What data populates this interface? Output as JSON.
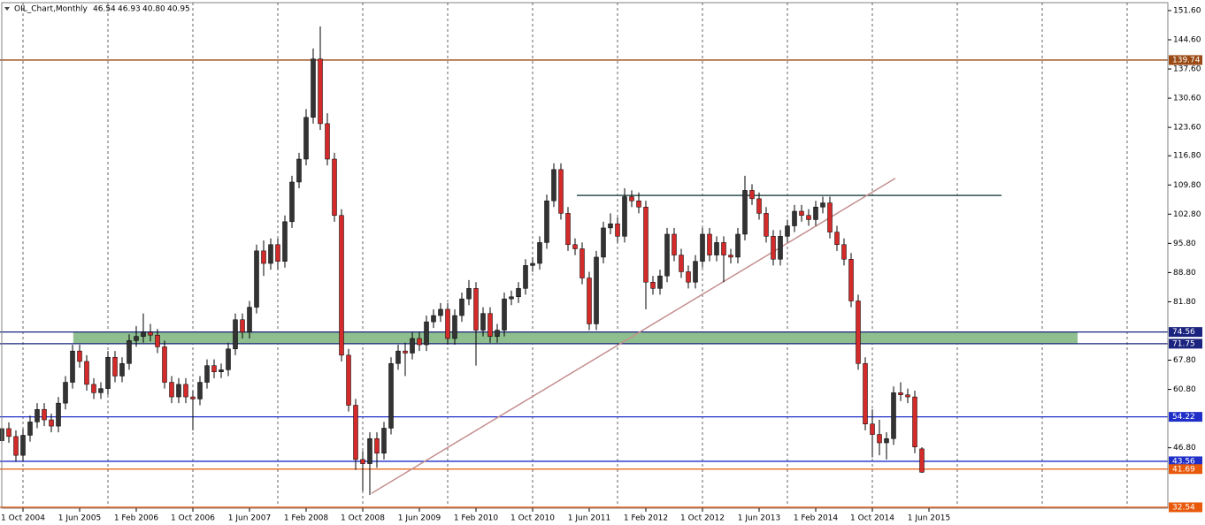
{
  "chart_data": {
    "type": "candlestick",
    "title": "OIL_Chart,Monthly",
    "info": [
      "46.54",
      "46.93",
      "40.80",
      "40.95"
    ],
    "xlim": [
      -0.25,
      164.75
    ],
    "ylim": [
      32.32,
      153.5
    ],
    "grid": true,
    "xticks": [
      {
        "value": 3,
        "label": "1 Oct 2004"
      },
      {
        "value": 11,
        "label": "1 Jun 2005"
      },
      {
        "value": 19,
        "label": "1 Feb 2006"
      },
      {
        "value": 27,
        "label": "1 Oct 2006"
      },
      {
        "value": 35,
        "label": "1 Jun 2007"
      },
      {
        "value": 43,
        "label": "1 Feb 2008"
      },
      {
        "value": 51,
        "label": "1 Oct 2008"
      },
      {
        "value": 59,
        "label": "1 Jun 2009"
      },
      {
        "value": 67,
        "label": "1 Feb 2010"
      },
      {
        "value": 75,
        "label": "1 Oct 2010"
      },
      {
        "value": 83,
        "label": "1 Jun 2011"
      },
      {
        "value": 91,
        "label": "1 Feb 2012"
      },
      {
        "value": 99,
        "label": "1 Oct 2012"
      },
      {
        "value": 107,
        "label": "1 Jun 2013"
      },
      {
        "value": 115,
        "label": "1 Feb 2014"
      },
      {
        "value": 123,
        "label": "1 Oct 2014"
      },
      {
        "value": 131,
        "label": "1 Jun 2015"
      }
    ],
    "yticks": [
      {
        "value": 151.6,
        "label": "151.60"
      },
      {
        "value": 144.6,
        "label": "144.60"
      },
      {
        "value": 137.6,
        "label": "137.60"
      },
      {
        "value": 130.6,
        "label": "130.60"
      },
      {
        "value": 123.6,
        "label": "123.60"
      },
      {
        "value": 116.8,
        "label": "116.80"
      },
      {
        "value": 109.8,
        "label": "109.80"
      },
      {
        "value": 102.8,
        "label": "102.80"
      },
      {
        "value": 95.8,
        "label": "95.80"
      },
      {
        "value": 88.8,
        "label": "88.80"
      },
      {
        "value": 81.8,
        "label": "81.80"
      },
      {
        "value": 67.8,
        "label": "67.80"
      },
      {
        "value": 60.8,
        "label": "60.80"
      },
      {
        "value": 46.8,
        "label": "46.80"
      }
    ],
    "up_color": "#333333",
    "down_color": "#d42a2a",
    "open": [
      48.5,
      51.4,
      49.5,
      45.0,
      49.8,
      53.0,
      56.0,
      53.5,
      52.0,
      57.5,
      62.5,
      70.0,
      67.5,
      62.0,
      60.0,
      61.0,
      68.5,
      64.0,
      67.0,
      72.5,
      73.5,
      74.5,
      73.8,
      71.0,
      62.5,
      59.0,
      62.0,
      59.0,
      58.5,
      62.5,
      66.5,
      65.0,
      65.5,
      70.5,
      77.5,
      74.5,
      80.5,
      94.0,
      91.0,
      95.5,
      91.5,
      101.0,
      110.5,
      116.0,
      126.0,
      140.0,
      124.5,
      116.0,
      102.5,
      69.0,
      57.0,
      44.0,
      43.0,
      49.0,
      45.5,
      51.5,
      67.0,
      70.0,
      69.5,
      73.0,
      71.5,
      77.0,
      78.5,
      80.0,
      73.0,
      78.5,
      82.5,
      85.0,
      75.0,
      79.0,
      73.5,
      75.0,
      82.5,
      83.0,
      85.0,
      90.5,
      91.0,
      96.0,
      106.0,
      113.5,
      103.0,
      95.5,
      94.5,
      87.5,
      76.5,
      92.5,
      99.5,
      100.5,
      97.5,
      107.0,
      106.0,
      104.5,
      86.5,
      85.0,
      88.0,
      98.0,
      93.0,
      89.0,
      86.5,
      91.5,
      98.0,
      93.0,
      96.0,
      93.0,
      92.5,
      98.0,
      108.5,
      106.5,
      103.0,
      97.5,
      92.0,
      97.5,
      100.0,
      103.5,
      102.5,
      101.5,
      104.5,
      105.5,
      98.5,
      95.5,
      92.0,
      82.0,
      67.0,
      52.5,
      50.0,
      48.0,
      49.0,
      60.0,
      59.5,
      59.0,
      46.54
    ],
    "high": [
      52.9,
      52.9,
      51.0,
      51.3,
      54.5,
      57.5,
      57.5,
      55.0,
      59.0,
      64.0,
      71.5,
      71.5,
      69.0,
      63.5,
      62.5,
      70.0,
      70.0,
      68.5,
      74.0,
      76.0,
      79.0,
      76.5,
      75.3,
      72.5,
      64.0,
      63.5,
      63.5,
      60.5,
      64.0,
      68.0,
      68.0,
      67.0,
      72.0,
      79.0,
      79.0,
      82.0,
      95.5,
      96.5,
      97.0,
      97.0,
      102.5,
      112.0,
      117.5,
      128.0,
      142.5,
      147.8,
      127.0,
      117.5,
      104.0,
      70.5,
      58.5,
      46.0,
      50.5,
      50.5,
      53.0,
      68.5,
      71.5,
      72.0,
      74.5,
      74.5,
      78.5,
      80.0,
      81.5,
      81.5,
      80.0,
      84.0,
      87.0,
      86.5,
      80.5,
      80.5,
      76.5,
      84.0,
      84.5,
      86.5,
      92.0,
      92.5,
      97.5,
      107.5,
      115.0,
      115.0,
      104.5,
      97.0,
      96.0,
      89.0,
      94.0,
      101.0,
      103.0,
      102.0,
      109.0,
      108.5,
      108.0,
      106.0,
      88.0,
      89.5,
      99.5,
      99.5,
      94.5,
      90.5,
      93.0,
      99.5,
      99.5,
      97.5,
      97.5,
      94.5,
      99.5,
      112.0,
      110.0,
      108.0,
      104.5,
      99.0,
      99.0,
      101.5,
      105.0,
      105.0,
      104.0,
      106.0,
      107.0,
      107.0,
      100.0,
      97.0,
      93.5,
      83.5,
      68.5,
      56.0,
      53.5,
      50.5,
      61.5,
      62.5,
      61.0,
      60.5,
      46.93
    ],
    "low": [
      47.0,
      48.0,
      43.5,
      43.5,
      48.3,
      51.5,
      52.0,
      50.5,
      50.5,
      56.0,
      61.0,
      66.0,
      60.5,
      58.5,
      58.5,
      59.5,
      62.5,
      62.5,
      65.5,
      71.0,
      72.0,
      72.3,
      69.5,
      61.0,
      57.5,
      57.5,
      57.5,
      51.0,
      57.0,
      61.0,
      63.5,
      63.5,
      64.0,
      69.0,
      73.0,
      73.0,
      79.0,
      88.0,
      89.5,
      89.5,
      90.0,
      99.5,
      109.0,
      114.5,
      124.5,
      123.0,
      114.5,
      101.0,
      67.5,
      55.5,
      41.5,
      36.5,
      35.5,
      42.0,
      44.0,
      50.0,
      65.5,
      64.0,
      68.0,
      70.0,
      70.0,
      75.5,
      77.0,
      71.5,
      71.5,
      77.0,
      81.0,
      66.5,
      73.5,
      72.0,
      72.0,
      73.5,
      81.0,
      81.5,
      83.5,
      89.0,
      89.5,
      94.5,
      104.5,
      101.5,
      94.0,
      93.0,
      86.0,
      75.0,
      75.0,
      91.0,
      98.0,
      96.0,
      96.0,
      104.5,
      103.0,
      80.0,
      83.5,
      83.5,
      86.5,
      91.5,
      87.5,
      85.0,
      85.0,
      90.0,
      91.5,
      91.5,
      86.5,
      91.0,
      91.0,
      96.5,
      105.0,
      101.5,
      96.0,
      90.5,
      90.5,
      96.0,
      98.5,
      101.0,
      100.0,
      100.0,
      103.0,
      97.0,
      94.0,
      90.5,
      80.5,
      65.5,
      51.0,
      44.5,
      45.0,
      44.0,
      47.5,
      58.0,
      57.5,
      45.5,
      40.8
    ],
    "close": [
      51.4,
      49.5,
      45.0,
      49.8,
      53.0,
      56.0,
      53.5,
      52.0,
      57.5,
      62.5,
      70.0,
      67.5,
      62.0,
      60.0,
      61.0,
      68.5,
      64.0,
      67.0,
      72.5,
      73.5,
      74.5,
      73.8,
      71.0,
      62.5,
      59.0,
      62.0,
      59.0,
      58.5,
      62.5,
      66.5,
      65.0,
      65.5,
      70.5,
      77.5,
      74.5,
      80.5,
      94.0,
      91.0,
      95.5,
      91.5,
      101.0,
      110.5,
      116.0,
      126.0,
      140.0,
      124.5,
      116.0,
      102.5,
      69.0,
      57.0,
      44.0,
      43.0,
      49.0,
      45.5,
      51.5,
      67.0,
      70.0,
      69.5,
      73.0,
      71.5,
      77.0,
      78.5,
      80.0,
      73.0,
      78.5,
      82.5,
      85.0,
      75.0,
      79.0,
      73.5,
      75.0,
      82.5,
      83.0,
      85.0,
      90.5,
      91.0,
      96.0,
      106.0,
      113.5,
      103.0,
      95.5,
      94.5,
      87.5,
      76.5,
      92.5,
      99.5,
      100.5,
      97.5,
      107.0,
      106.0,
      104.5,
      86.5,
      85.0,
      88.0,
      98.0,
      93.0,
      89.0,
      86.5,
      91.5,
      98.0,
      93.0,
      96.0,
      93.0,
      92.5,
      98.0,
      108.5,
      106.5,
      103.0,
      97.5,
      92.0,
      97.5,
      100.0,
      103.5,
      102.5,
      101.5,
      104.5,
      105.5,
      98.5,
      95.5,
      92.0,
      82.0,
      67.0,
      52.5,
      50.0,
      48.0,
      49.0,
      60.0,
      59.5,
      59.0,
      47.0,
      40.95
    ],
    "levels": [
      {
        "value": 139.74,
        "color": "#9a4a14"
      },
      {
        "value": 74.56,
        "color": "#1a237e"
      },
      {
        "value": 71.75,
        "color": "#1a237e"
      },
      {
        "value": 54.22,
        "color": "#1f2fc8"
      },
      {
        "value": 43.56,
        "color": "#1f2fc8"
      },
      {
        "value": 41.69,
        "color": "#e8590c"
      },
      {
        "value": 32.54,
        "color": "#e8590c"
      }
    ],
    "zone": {
      "x": [
        10.1,
        152
      ],
      "y": [
        71.75,
        74.56
      ],
      "color": "#8fbf8f"
    },
    "trend_lines": [
      {
        "x": [
          81.25,
          141.25
        ],
        "y": [
          107.3,
          107.3
        ],
        "color": "#2f4f4f"
      },
      {
        "x": [
          52.25,
          126.25
        ],
        "y": [
          35.9,
          111.4
        ],
        "color": "#c48f8f"
      }
    ]
  }
}
